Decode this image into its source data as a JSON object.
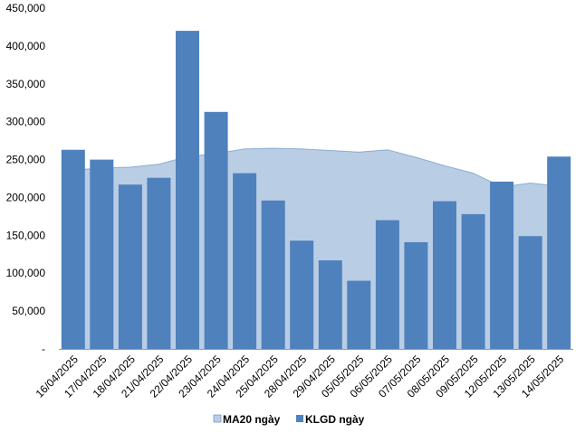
{
  "chart_data": {
    "type": "bar",
    "categories": [
      "16/04/2025",
      "17/04/2025",
      "18/04/2025",
      "21/04/2025",
      "22/04/2025",
      "23/04/2025",
      "24/04/2025",
      "25/04/2025",
      "28/04/2025",
      "29/04/2025",
      "05/05/2025",
      "06/05/2025",
      "07/05/2025",
      "08/05/2025",
      "09/05/2025",
      "12/05/2025",
      "13/05/2025",
      "14/05/2025"
    ],
    "series": [
      {
        "name": "MA20 ngày",
        "type": "area",
        "color": "#b9cde5",
        "line_color": "#4f81bd",
        "values": [
          236000,
          239000,
          240000,
          244000,
          254000,
          258000,
          264000,
          265000,
          264000,
          262000,
          260000,
          263000,
          253000,
          242000,
          232000,
          214000,
          219000,
          215000
        ]
      },
      {
        "name": "KLGD ngày",
        "type": "bar",
        "color": "#4f81bd",
        "values": [
          263000,
          250000,
          217000,
          226000,
          420000,
          313000,
          232000,
          196000,
          143000,
          117000,
          90000,
          170000,
          141000,
          195000,
          178000,
          221000,
          149000,
          254000
        ]
      }
    ],
    "yticks": [
      "-",
      "50,000",
      "100,000",
      "150,000",
      "200,000",
      "250,000",
      "300,000",
      "350,000",
      "400,000",
      "450,000"
    ],
    "ylim": [
      0,
      450000
    ],
    "grid": false,
    "legend_position": "bottom"
  }
}
